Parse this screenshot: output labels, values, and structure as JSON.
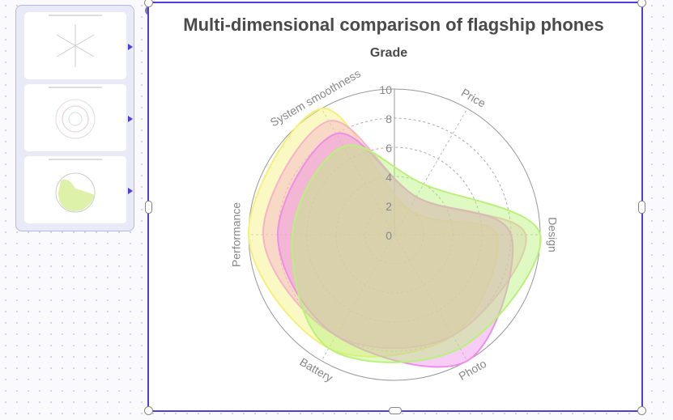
{
  "chart_data": {
    "type": "radar",
    "title": "Multi-dimensional comparison of flagship phones",
    "subtitle": "Grade",
    "axes": [
      "Design",
      "Price",
      "System smoothness",
      "Performance",
      "Battery",
      "Photo"
    ],
    "rlim": [
      0,
      10
    ],
    "r_ticks": [
      "0",
      "2",
      "4",
      "6",
      "8",
      "10"
    ],
    "smooth": true,
    "series": [
      {
        "key": "s1",
        "color": "#f5f07a",
        "values": [
          7,
          2,
          10,
          10,
          9,
          8
        ]
      },
      {
        "key": "s2",
        "color": "#f7b3c8",
        "values": [
          9,
          3,
          9,
          9,
          8,
          8
        ]
      },
      {
        "key": "s3",
        "color": "#ee8ee8",
        "values": [
          8,
          3,
          8,
          8,
          8,
          10
        ]
      },
      {
        "key": "s4",
        "color": "#b8f27a",
        "values": [
          10,
          4,
          7,
          7,
          9,
          9
        ]
      }
    ]
  },
  "ui": {
    "close_glyph": "×"
  }
}
